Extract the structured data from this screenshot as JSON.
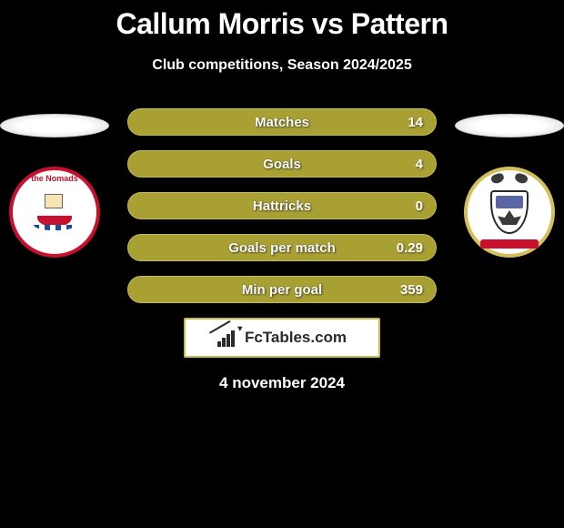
{
  "title": "Callum Morris vs Pattern",
  "subtitle": "Club competitions, Season 2024/2025",
  "footer_date": "4 november 2024",
  "brand": {
    "text": "FcTables.com"
  },
  "colors": {
    "background": "#000000",
    "bar_fill": "#a9a034",
    "bar_border": "#c4bb4a",
    "text": "#ffffff",
    "accent_red": "#c8102e"
  },
  "stats": [
    {
      "label": "Matches",
      "value": "14"
    },
    {
      "label": "Goals",
      "value": "4"
    },
    {
      "label": "Hattricks",
      "value": "0"
    },
    {
      "label": "Goals per match",
      "value": "0.29"
    },
    {
      "label": "Min per goal",
      "value": "359"
    }
  ],
  "left_team": {
    "name": "The Nomads",
    "crest_primary": "#c8102e"
  },
  "right_team": {
    "name": "Pattern",
    "crest_primary": "#d4c05a"
  }
}
